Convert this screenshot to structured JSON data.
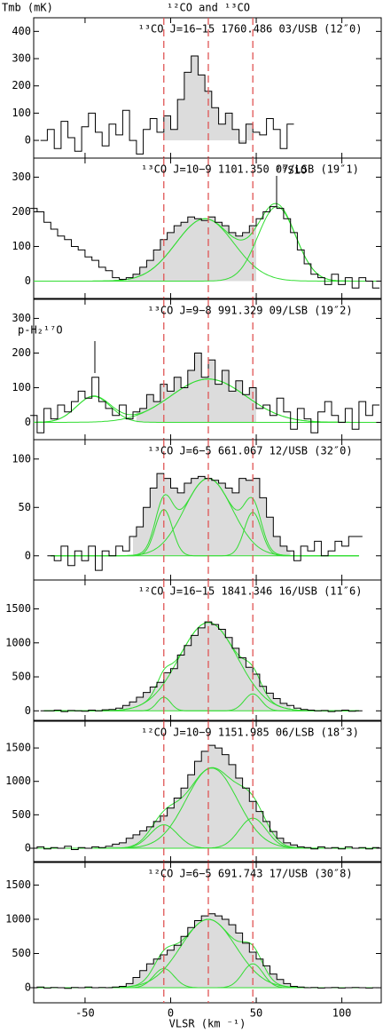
{
  "chart_data": [
    {
      "type": "step",
      "title": "¹²CO and ¹³CO",
      "ylabel": "Tmb (mK)",
      "label": "¹³CO J=16−15  1760.486 03/USB (12″0)",
      "x": [
        -74,
        -70,
        -66,
        -62,
        -58,
        -54,
        -50,
        -46,
        -42,
        -38,
        -34,
        -30,
        -26,
        -22,
        -18,
        -14,
        -10,
        -6,
        -2,
        2,
        6,
        10,
        14,
        18,
        22,
        26,
        30,
        34,
        38,
        42,
        46,
        50,
        54,
        58,
        62,
        66,
        70
      ],
      "series": [
        {
          "color": "#000000",
          "values": [
            0,
            40,
            -30,
            70,
            10,
            -40,
            50,
            100,
            30,
            -20,
            60,
            20,
            110,
            0,
            -50,
            40,
            80,
            30,
            90,
            40,
            150,
            250,
            310,
            240,
            180,
            120,
            60,
            100,
            40,
            -10,
            60,
            30,
            20,
            80,
            40,
            -30,
            60
          ]
        }
      ],
      "fits": [],
      "fit_color": "#33dd33",
      "shade_range": [
        -4,
        48
      ],
      "shade_color": "#dcdcdc",
      "vlines": [
        -4,
        22,
        48
      ],
      "vline_color": "#e05555",
      "xlim": [
        -80,
        123
      ],
      "ylim": [
        -65,
        450
      ],
      "xticks": [
        -50,
        0,
        50,
        100
      ],
      "yticks": [
        0,
        100,
        200,
        300,
        400
      ]
    },
    {
      "type": "step",
      "label": "¹³CO J=10−9  1101.350 07/LSB (19″1)",
      "annotations": [
        "²⁹SiO"
      ],
      "x": [
        -80,
        -76,
        -72,
        -68,
        -64,
        -60,
        -56,
        -52,
        -48,
        -44,
        -40,
        -36,
        -32,
        -28,
        -24,
        -20,
        -16,
        -12,
        -8,
        -4,
        0,
        4,
        8,
        12,
        16,
        20,
        24,
        28,
        32,
        36,
        40,
        44,
        48,
        52,
        56,
        60,
        64,
        68,
        72,
        76,
        80,
        84,
        88,
        92,
        96,
        100,
        104,
        108,
        112,
        116,
        120
      ],
      "series": [
        {
          "color": "#000000",
          "values": [
            210,
            200,
            170,
            150,
            130,
            120,
            100,
            90,
            70,
            60,
            40,
            30,
            10,
            5,
            10,
            20,
            40,
            60,
            90,
            120,
            140,
            160,
            170,
            185,
            180,
            175,
            185,
            170,
            160,
            140,
            130,
            140,
            160,
            180,
            200,
            215,
            210,
            180,
            140,
            90,
            50,
            20,
            10,
            -10,
            20,
            -10,
            10,
            -20,
            10,
            0,
            -20
          ]
        }
      ],
      "fits": [
        {
          "amp": 180,
          "center": 20,
          "width": 17
        },
        {
          "amp": 215,
          "center": 62,
          "width": 11
        }
      ],
      "fit_color": "#33dd33",
      "shade_range": [
        -25,
        50
      ],
      "shade_color": "#dcdcdc",
      "vlines": [
        -4,
        22,
        48
      ],
      "vline_color": "#e05555",
      "xlim": [
        -80,
        123
      ],
      "ylim": [
        -50,
        355
      ],
      "xticks": [
        -50,
        0,
        50,
        100
      ],
      "yticks": [
        0,
        100,
        200,
        300
      ]
    },
    {
      "type": "step",
      "label": "¹³CO J=9−8  991.329 09/LSB (19″2)",
      "annotations": [
        "p-H₂¹⁷O"
      ],
      "x": [
        -80,
        -76,
        -72,
        -68,
        -64,
        -60,
        -56,
        -52,
        -48,
        -44,
        -40,
        -36,
        -32,
        -28,
        -24,
        -20,
        -16,
        -12,
        -8,
        -4,
        0,
        4,
        8,
        12,
        16,
        20,
        24,
        28,
        32,
        36,
        40,
        44,
        48,
        52,
        56,
        60,
        64,
        68,
        72,
        76,
        80,
        84,
        88,
        92,
        96,
        100,
        104,
        108,
        112,
        116,
        120
      ],
      "series": [
        {
          "color": "#000000",
          "values": [
            20,
            -30,
            40,
            10,
            50,
            30,
            60,
            90,
            70,
            130,
            60,
            40,
            20,
            50,
            10,
            30,
            40,
            80,
            60,
            110,
            90,
            130,
            100,
            150,
            200,
            130,
            180,
            110,
            150,
            90,
            120,
            80,
            100,
            40,
            50,
            20,
            70,
            30,
            -20,
            40,
            10,
            -30,
            30,
            60,
            20,
            0,
            40,
            -20,
            60,
            20,
            50
          ]
        }
      ],
      "fits": [
        {
          "amp": 75,
          "center": -45,
          "width": 10
        },
        {
          "amp": 125,
          "center": 22,
          "width": 22
        }
      ],
      "fit_color": "#33dd33",
      "shade_range": [
        -20,
        50
      ],
      "shade_color": "#dcdcdc",
      "vlines": [
        -4,
        22,
        48
      ],
      "vline_color": "#e05555",
      "xlim": [
        -80,
        123
      ],
      "ylim": [
        -50,
        355
      ],
      "xticks": [
        -50,
        0,
        50,
        100
      ],
      "yticks": [
        0,
        100,
        200,
        300
      ]
    },
    {
      "type": "step",
      "label": "¹³CO J=6−5  661.067 12/USB (32″0)",
      "x": [
        -70,
        -66,
        -62,
        -58,
        -54,
        -50,
        -46,
        -42,
        -38,
        -34,
        -30,
        -26,
        -22,
        -18,
        -14,
        -10,
        -6,
        -2,
        2,
        6,
        10,
        14,
        18,
        22,
        26,
        30,
        34,
        38,
        42,
        46,
        50,
        54,
        58,
        62,
        66,
        70,
        74,
        78,
        82,
        86,
        90,
        94,
        98,
        102,
        106,
        110
      ],
      "series": [
        {
          "color": "#000000",
          "values": [
            0,
            -5,
            10,
            -10,
            5,
            -5,
            10,
            -15,
            5,
            0,
            10,
            5,
            20,
            30,
            50,
            70,
            85,
            80,
            70,
            65,
            75,
            80,
            82,
            80,
            78,
            75,
            70,
            65,
            80,
            78,
            80,
            60,
            40,
            20,
            10,
            5,
            -5,
            10,
            5,
            15,
            0,
            5,
            15,
            10,
            20,
            20
          ]
        }
      ],
      "fits": [
        {
          "amp": 48,
          "center": -4,
          "width": 5
        },
        {
          "amp": 80,
          "center": 22,
          "width": 14
        },
        {
          "amp": 45,
          "center": 48,
          "width": 5
        }
      ],
      "fit_color": "#33dd33",
      "shade_range": [
        -22,
        70
      ],
      "shade_color": "#dcdcdc",
      "vlines": [
        -4,
        22,
        48
      ],
      "vline_color": "#e05555",
      "xlim": [
        -80,
        123
      ],
      "ylim": [
        -25,
        120
      ],
      "xticks": [
        -50,
        0,
        50,
        100
      ],
      "yticks": [
        0,
        50,
        100
      ]
    },
    {
      "type": "step",
      "label": "¹²CO J=16−15  1841.346 16/USB (11″6)",
      "x": [
        -74,
        -70,
        -66,
        -62,
        -58,
        -54,
        -50,
        -46,
        -42,
        -38,
        -34,
        -30,
        -26,
        -22,
        -18,
        -14,
        -10,
        -6,
        -2,
        2,
        6,
        10,
        14,
        18,
        22,
        26,
        30,
        34,
        38,
        42,
        46,
        50,
        54,
        58,
        62,
        66,
        70,
        74,
        78,
        82,
        86,
        90,
        94,
        98,
        102,
        106,
        110
      ],
      "series": [
        {
          "color": "#000000",
          "values": [
            0,
            0,
            10,
            -10,
            5,
            0,
            -5,
            10,
            0,
            15,
            20,
            40,
            80,
            130,
            200,
            270,
            350,
            420,
            560,
            620,
            820,
            960,
            1110,
            1220,
            1310,
            1270,
            1200,
            1080,
            920,
            780,
            640,
            540,
            360,
            260,
            180,
            110,
            80,
            40,
            20,
            10,
            0,
            5,
            -10,
            0,
            10,
            -5,
            0
          ]
        }
      ],
      "fits": [
        {
          "amp": 1300,
          "center": 22,
          "width": 17
        },
        {
          "amp": 200,
          "center": -4,
          "width": 4
        },
        {
          "amp": 250,
          "center": 48,
          "width": 5
        }
      ],
      "fit_color": "#33dd33",
      "shade_range": [
        -30,
        70
      ],
      "shade_color": "#dcdcdc",
      "vlines": [
        -4,
        22,
        48
      ],
      "vline_color": "#e05555",
      "xlim": [
        -80,
        123
      ],
      "ylim": [
        -140,
        1925
      ],
      "xticks": [
        -50,
        0,
        50,
        100
      ],
      "yticks": [
        0,
        500,
        1000,
        1500
      ]
    },
    {
      "type": "step",
      "label": "¹²CO J=10−9  1151.985 06/LSB (18″3)",
      "x": [
        -80,
        -76,
        -72,
        -68,
        -64,
        -60,
        -56,
        -52,
        -48,
        -44,
        -40,
        -36,
        -32,
        -28,
        -24,
        -20,
        -16,
        -12,
        -8,
        -4,
        0,
        4,
        8,
        12,
        16,
        20,
        24,
        28,
        32,
        36,
        40,
        44,
        48,
        52,
        56,
        60,
        64,
        68,
        72,
        76,
        80,
        84,
        88,
        92,
        96,
        100,
        104,
        108,
        112,
        116,
        120
      ],
      "series": [
        {
          "color": "#000000",
          "values": [
            0,
            20,
            -10,
            10,
            0,
            30,
            -20,
            10,
            0,
            20,
            10,
            30,
            60,
            80,
            150,
            200,
            260,
            320,
            400,
            480,
            600,
            750,
            900,
            1100,
            1300,
            1450,
            1540,
            1500,
            1400,
            1250,
            1050,
            900,
            700,
            550,
            400,
            250,
            150,
            80,
            50,
            20,
            10,
            -10,
            20,
            0,
            10,
            -10,
            20,
            0,
            10,
            -10,
            10
          ]
        }
      ],
      "fits": [
        {
          "amp": 1200,
          "center": 24,
          "width": 15
        },
        {
          "amp": 350,
          "center": -4,
          "width": 8
        },
        {
          "amp": 450,
          "center": 48,
          "width": 8
        }
      ],
      "fit_color": "#33dd33",
      "shade_range": [
        -35,
        75
      ],
      "shade_color": "#dcdcdc",
      "vlines": [
        -4,
        22,
        48
      ],
      "vline_color": "#e05555",
      "xlim": [
        -80,
        123
      ],
      "ylim": [
        -200,
        1900
      ],
      "xticks": [
        -50,
        0,
        50,
        100
      ],
      "yticks": [
        0,
        500,
        1000,
        1500
      ]
    },
    {
      "type": "step",
      "label": "¹²CO J=6−5  691.743 17/USB (30″8)",
      "xlabel": "VLSR (km ⁻¹)",
      "x": [
        -80,
        -76,
        -72,
        -68,
        -64,
        -60,
        -56,
        -52,
        -48,
        -44,
        -40,
        -36,
        -32,
        -28,
        -24,
        -20,
        -16,
        -12,
        -8,
        -4,
        0,
        4,
        8,
        12,
        16,
        20,
        24,
        28,
        32,
        36,
        40,
        44,
        48,
        52,
        56,
        60,
        64,
        68,
        72,
        76,
        80,
        84,
        88,
        92,
        96,
        100,
        104,
        108,
        112,
        116,
        120
      ],
      "series": [
        {
          "color": "#000000",
          "values": [
            0,
            10,
            -5,
            5,
            0,
            -10,
            5,
            0,
            10,
            0,
            5,
            0,
            10,
            20,
            60,
            150,
            250,
            350,
            420,
            480,
            550,
            620,
            750,
            880,
            980,
            1050,
            1080,
            1050,
            1000,
            920,
            800,
            650,
            520,
            420,
            320,
            200,
            120,
            60,
            20,
            10,
            0,
            5,
            -5,
            0,
            5,
            -5,
            0,
            5,
            0,
            -5,
            0
          ]
        }
      ],
      "fits": [
        {
          "amp": 1000,
          "center": 22,
          "width": 16
        },
        {
          "amp": 280,
          "center": -4,
          "width": 6
        },
        {
          "amp": 350,
          "center": 48,
          "width": 6
        }
      ],
      "fit_color": "#33dd33",
      "shade_range": [
        -30,
        75
      ],
      "shade_color": "#dcdcdc",
      "vlines": [
        -4,
        22,
        48
      ],
      "vline_color": "#e05555",
      "xlim": [
        -80,
        123
      ],
      "ylim": [
        -220,
        1830
      ],
      "xticks": [
        -50,
        0,
        50,
        100
      ],
      "yticks": [
        0,
        500,
        1000,
        1500
      ]
    }
  ]
}
